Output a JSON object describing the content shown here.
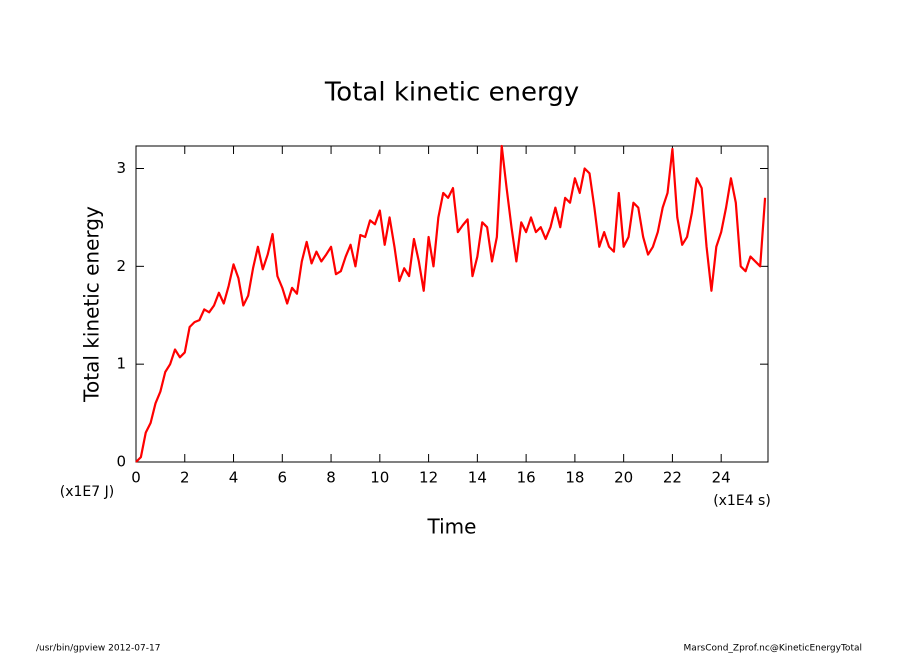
{
  "chart_data": {
    "type": "line",
    "title": "Total kinetic energy",
    "x_label": "Time",
    "y_label": "Total kinetic energy",
    "x_unit": "(x1E4 s)",
    "y_unit": "(x1E7 J)",
    "footer_left": "/usr/bin/gpview  2012-07-17",
    "footer_right": "MarsCond_Zprof.nc@KineticEnergyTotal",
    "xlim": [
      0,
      25.92
    ],
    "ylim": [
      0,
      3.23
    ],
    "xticks": [
      0,
      2,
      4,
      6,
      8,
      10,
      12,
      14,
      16,
      18,
      20,
      22,
      24
    ],
    "yticks": [
      0,
      1,
      2,
      3
    ],
    "x": [
      0,
      0.2,
      0.4,
      0.6,
      0.8,
      1,
      1.2,
      1.4,
      1.6,
      1.8,
      2,
      2.2,
      2.4,
      2.6,
      2.8,
      3,
      3.2,
      3.4,
      3.6,
      3.8,
      4,
      4.2,
      4.4,
      4.6,
      4.8,
      5,
      5.2,
      5.4,
      5.6,
      5.8,
      6,
      6.2,
      6.4,
      6.6,
      6.8,
      7,
      7.2,
      7.4,
      7.6,
      7.8,
      8,
      8.2,
      8.4,
      8.6,
      8.8,
      9,
      9.2,
      9.4,
      9.6,
      9.8,
      10,
      10.2,
      10.4,
      10.6,
      10.8,
      11,
      11.2,
      11.4,
      11.6,
      11.8,
      12,
      12.2,
      12.4,
      12.6,
      12.8,
      13,
      13.2,
      13.4,
      13.6,
      13.8,
      14,
      14.2,
      14.4,
      14.6,
      14.8,
      15,
      15.2,
      15.4,
      15.6,
      15.8,
      16,
      16.2,
      16.4,
      16.6,
      16.8,
      17,
      17.2,
      17.4,
      17.6,
      17.8,
      18,
      18.2,
      18.4,
      18.6,
      18.8,
      19,
      19.2,
      19.4,
      19.6,
      19.8,
      20,
      20.2,
      20.4,
      20.6,
      20.8,
      21,
      21.2,
      21.4,
      21.6,
      21.8,
      22,
      22.2,
      22.4,
      22.6,
      22.8,
      23,
      23.2,
      23.4,
      23.6,
      23.8,
      24,
      24.2,
      24.4,
      24.6,
      24.8,
      25,
      25.2,
      25.4,
      25.6,
      25.8
    ],
    "series": [
      {
        "name": "Total kinetic energy",
        "color": "#ff0000",
        "values": [
          0,
          0.05,
          0.3,
          0.4,
          0.6,
          0.72,
          0.92,
          1.0,
          1.15,
          1.07,
          1.12,
          1.38,
          1.43,
          1.45,
          1.56,
          1.53,
          1.6,
          1.73,
          1.62,
          1.8,
          2.02,
          1.88,
          1.6,
          1.7,
          1.98,
          2.2,
          1.97,
          2.12,
          2.33,
          1.9,
          1.78,
          1.62,
          1.78,
          1.72,
          2.05,
          2.25,
          2.03,
          2.15,
          2.05,
          2.12,
          2.2,
          1.92,
          1.95,
          2.1,
          2.22,
          2.0,
          2.32,
          2.3,
          2.47,
          2.43,
          2.57,
          2.22,
          2.5,
          2.2,
          1.85,
          1.98,
          1.9,
          2.28,
          2.05,
          1.75,
          2.3,
          2.0,
          2.5,
          2.75,
          2.7,
          2.8,
          2.35,
          2.42,
          2.48,
          1.9,
          2.1,
          2.45,
          2.4,
          2.05,
          2.3,
          3.23,
          2.8,
          2.4,
          2.05,
          2.45,
          2.35,
          2.5,
          2.35,
          2.4,
          2.28,
          2.4,
          2.6,
          2.4,
          2.7,
          2.65,
          2.9,
          2.75,
          3.0,
          2.95,
          2.6,
          2.2,
          2.35,
          2.2,
          2.15,
          2.75,
          2.2,
          2.3,
          2.65,
          2.6,
          2.3,
          2.12,
          2.2,
          2.35,
          2.6,
          2.75,
          3.2,
          2.5,
          2.22,
          2.3,
          2.55,
          2.9,
          2.8,
          2.2,
          1.75,
          2.2,
          2.35,
          2.6,
          2.9,
          2.65,
          2.0,
          1.95,
          2.1,
          2.05,
          2.0,
          2.7
        ]
      }
    ]
  }
}
